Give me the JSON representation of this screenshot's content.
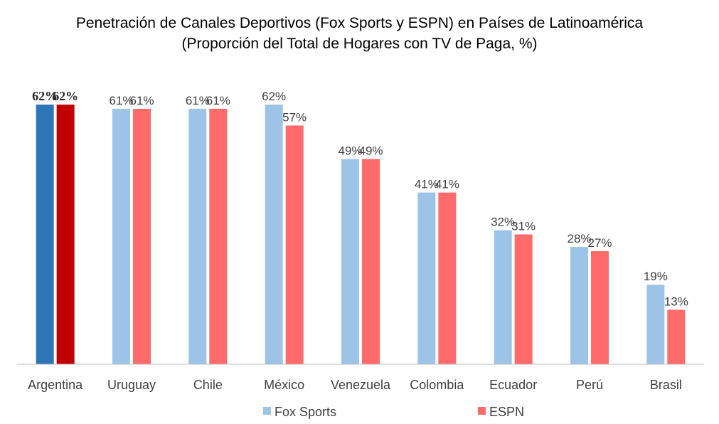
{
  "chart_data": {
    "type": "bar",
    "title": "Penetración de Canales Deportivos (Fox Sports y ESPN) en Países de Latinoamérica",
    "subtitle": "(Proporción del Total de Hogares con TV de Paga, %)",
    "categories": [
      "Argentina",
      "Uruguay",
      "Chile",
      "México",
      "Venezuela",
      "Colombia",
      "Ecuador",
      "Perú",
      "Brasil"
    ],
    "series": [
      {
        "name": "Fox Sports",
        "values": [
          62,
          61,
          61,
          62,
          49,
          41,
          32,
          28,
          19
        ],
        "labels": [
          "62%",
          "61%",
          "61%",
          "62%",
          "49%",
          "41%",
          "32%",
          "28%",
          "19%"
        ]
      },
      {
        "name": "ESPN",
        "values": [
          62,
          61,
          61,
          57,
          49,
          41,
          31,
          27,
          13
        ],
        "labels": [
          "62%",
          "61%",
          "61%",
          "57%",
          "49%",
          "41%",
          "31%",
          "27%",
          "13%"
        ]
      }
    ],
    "ylim": [
      0,
      62
    ],
    "grid": false,
    "legend_position": "bottom",
    "colors": {
      "fox": "#9DC3E6",
      "espn": "#FF6B6B",
      "fox_highlight": "#2E75B6",
      "espn_highlight": "#C00000",
      "axis": "#BFBFBF"
    },
    "highlight_category": "Argentina"
  }
}
